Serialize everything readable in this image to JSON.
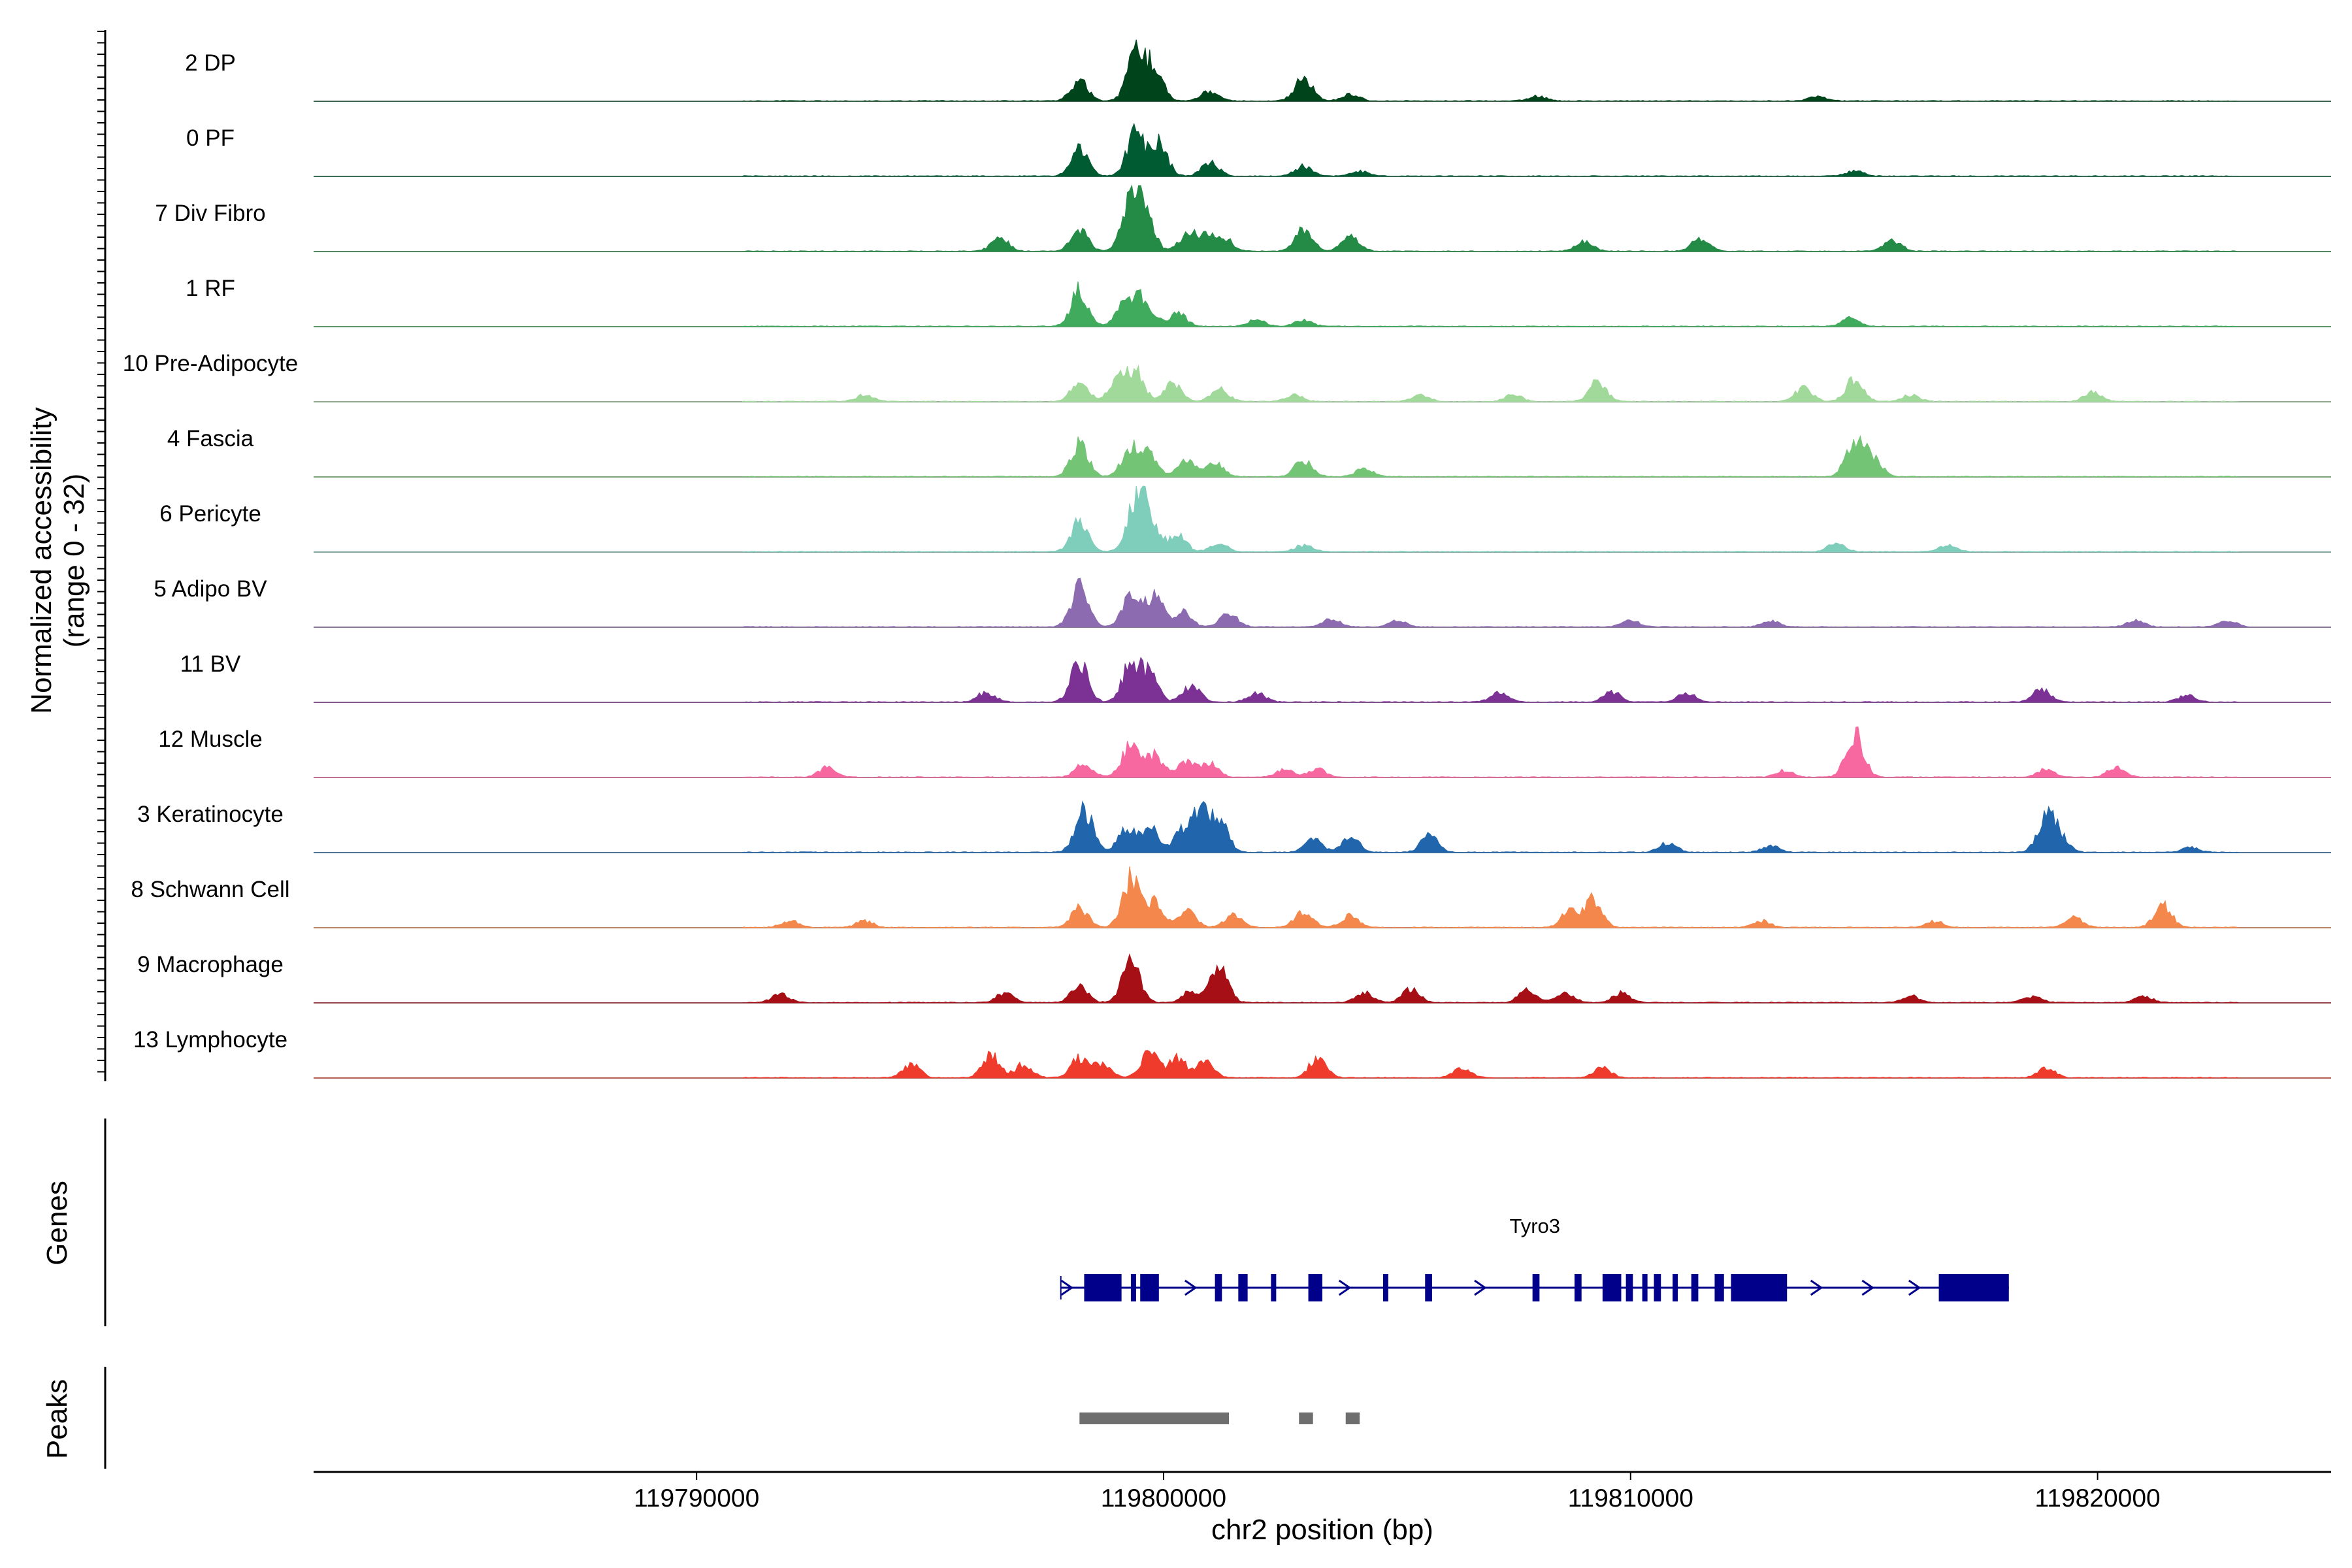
{
  "chart_data": {
    "type": "area",
    "region": {
      "chrom": "chr2",
      "start": 119781800,
      "end": 119825000
    },
    "y_axis_title": [
      "Normalized accessibility",
      "(range 0 - 32)"
    ],
    "ylim": [
      0,
      32
    ],
    "xlabel": "chr2 position (bp)",
    "x_ticks": [
      {
        "value": 119790000,
        "label": "119790000"
      },
      {
        "value": 119800000,
        "label": "119800000"
      },
      {
        "value": 119810000,
        "label": "119810000"
      },
      {
        "value": 119820000,
        "label": "119820000"
      }
    ],
    "tracks": [
      {
        "name": "2 DP",
        "color": "#00441b",
        "peaks": [
          [
            119799400,
            28
          ],
          [
            119799800,
            22
          ],
          [
            119798200,
            12
          ],
          [
            119803000,
            14
          ],
          [
            119801000,
            6
          ],
          [
            119804000,
            4
          ],
          [
            119808000,
            3
          ],
          [
            119814000,
            3
          ]
        ]
      },
      {
        "name": "0 PF",
        "color": "#005a32",
        "peaks": [
          [
            119799400,
            26
          ],
          [
            119799900,
            20
          ],
          [
            119798200,
            16
          ],
          [
            119801000,
            8
          ],
          [
            119803000,
            6
          ],
          [
            119804200,
            3
          ],
          [
            119814800,
            3
          ]
        ]
      },
      {
        "name": "7 Div Fibro",
        "color": "#238b45",
        "peaks": [
          [
            119799300,
            32
          ],
          [
            119799600,
            24
          ],
          [
            119798200,
            14
          ],
          [
            119800500,
            10
          ],
          [
            119803000,
            14
          ],
          [
            119804000,
            10
          ],
          [
            119796500,
            8
          ],
          [
            119800900,
            9
          ],
          [
            119801300,
            8
          ],
          [
            119809000,
            6
          ],
          [
            119811500,
            8
          ],
          [
            119815600,
            7
          ]
        ]
      },
      {
        "name": "1 RF",
        "color": "#41ab5d",
        "peaks": [
          [
            119798200,
            22
          ],
          [
            119799200,
            18
          ],
          [
            119799600,
            16
          ],
          [
            119800300,
            8
          ],
          [
            119802000,
            4
          ],
          [
            119803000,
            4
          ],
          [
            119814700,
            5
          ]
        ]
      },
      {
        "name": "10 Pre-Adipocyte",
        "color": "#a1d99b",
        "peaks": [
          [
            119798200,
            12
          ],
          [
            119799000,
            14
          ],
          [
            119799400,
            18
          ],
          [
            119800200,
            12
          ],
          [
            119801200,
            8
          ],
          [
            119793600,
            4
          ],
          [
            119809300,
            12
          ],
          [
            119813700,
            8
          ],
          [
            119814800,
            14
          ],
          [
            119816000,
            4
          ],
          [
            119819900,
            6
          ],
          [
            119802800,
            4
          ],
          [
            119805500,
            4
          ],
          [
            119807500,
            4
          ]
        ]
      },
      {
        "name": "4 Fascia",
        "color": "#74c476",
        "peaks": [
          [
            119798200,
            20
          ],
          [
            119799300,
            18
          ],
          [
            119799700,
            14
          ],
          [
            119800500,
            10
          ],
          [
            119801100,
            8
          ],
          [
            119803000,
            10
          ],
          [
            119804300,
            5
          ],
          [
            119814800,
            24
          ],
          [
            119815200,
            10
          ]
        ]
      },
      {
        "name": "6 Pericyte",
        "color": "#7fcdbb",
        "peaks": [
          [
            119798200,
            18
          ],
          [
            119799400,
            30
          ],
          [
            119799700,
            22
          ],
          [
            119800300,
            10
          ],
          [
            119801200,
            5
          ],
          [
            119803000,
            4
          ],
          [
            119814400,
            5
          ],
          [
            119816800,
            4
          ]
        ]
      },
      {
        "name": "5 Adipo BV",
        "color": "#8c6bb1",
        "peaks": [
          [
            119798200,
            24
          ],
          [
            119799300,
            20
          ],
          [
            119799800,
            18
          ],
          [
            119800400,
            10
          ],
          [
            119801400,
            8
          ],
          [
            119803600,
            5
          ],
          [
            119805000,
            4
          ],
          [
            119810000,
            4
          ],
          [
            119813000,
            4
          ],
          [
            119820800,
            4
          ],
          [
            119822800,
            4
          ]
        ]
      },
      {
        "name": "11 BV",
        "color": "#7b3294",
        "peaks": [
          [
            119798200,
            24
          ],
          [
            119799300,
            24
          ],
          [
            119799700,
            16
          ],
          [
            119800600,
            10
          ],
          [
            119796200,
            6
          ],
          [
            119802000,
            6
          ],
          [
            119807200,
            6
          ],
          [
            119809600,
            6
          ],
          [
            119811200,
            6
          ],
          [
            119818800,
            8
          ],
          [
            119821900,
            4
          ]
        ]
      },
      {
        "name": "12 Muscle",
        "color": "#f768a1",
        "peaks": [
          [
            119792800,
            6
          ],
          [
            119798300,
            8
          ],
          [
            119799300,
            20
          ],
          [
            119799800,
            14
          ],
          [
            119800500,
            10
          ],
          [
            119801000,
            8
          ],
          [
            119802600,
            5
          ],
          [
            119803300,
            5
          ],
          [
            119813300,
            4
          ],
          [
            119814800,
            28
          ],
          [
            119818900,
            5
          ],
          [
            119820400,
            6
          ]
        ]
      },
      {
        "name": "3 Keratinocyte",
        "color": "#2166ac",
        "peaks": [
          [
            119798300,
            26
          ],
          [
            119799200,
            14
          ],
          [
            119799700,
            16
          ],
          [
            119800400,
            12
          ],
          [
            119800800,
            26
          ],
          [
            119801200,
            18
          ],
          [
            119803200,
            8
          ],
          [
            119804000,
            10
          ],
          [
            119805700,
            10
          ],
          [
            119810800,
            6
          ],
          [
            119818900,
            22
          ],
          [
            119819200,
            8
          ],
          [
            119813000,
            4
          ],
          [
            119822000,
            3
          ]
        ]
      },
      {
        "name": "8 Schwann Cell",
        "color": "#f4874b",
        "peaks": [
          [
            119798200,
            12
          ],
          [
            119799300,
            30
          ],
          [
            119799800,
            16
          ],
          [
            119800500,
            10
          ],
          [
            119801500,
            8
          ],
          [
            119803000,
            10
          ],
          [
            119804000,
            7
          ],
          [
            119808700,
            10
          ],
          [
            119809200,
            18
          ],
          [
            119792000,
            4
          ],
          [
            119793600,
            4
          ],
          [
            119812800,
            4
          ],
          [
            119816500,
            4
          ],
          [
            119819500,
            6
          ],
          [
            119821400,
            14
          ]
        ]
      },
      {
        "name": "9 Macrophage",
        "color": "#a50f15",
        "peaks": [
          [
            119799300,
            26
          ],
          [
            119798200,
            10
          ],
          [
            119801200,
            24
          ],
          [
            119800600,
            8
          ],
          [
            119796600,
            6
          ],
          [
            119791800,
            5
          ],
          [
            119804300,
            6
          ],
          [
            119805300,
            8
          ],
          [
            119807800,
            8
          ],
          [
            119808600,
            6
          ],
          [
            119809800,
            6
          ],
          [
            119816000,
            4
          ],
          [
            119818600,
            4
          ],
          [
            119821000,
            4
          ]
        ]
      },
      {
        "name": "13 Lymphocyte",
        "color": "#ef3b2c",
        "peaks": [
          [
            119794600,
            8
          ],
          [
            119796300,
            14
          ],
          [
            119797000,
            8
          ],
          [
            119798200,
            12
          ],
          [
            119798700,
            8
          ],
          [
            119799700,
            16
          ],
          [
            119800300,
            12
          ],
          [
            119800900,
            10
          ],
          [
            119803300,
            12
          ],
          [
            119806400,
            6
          ],
          [
            119809400,
            6
          ],
          [
            119818900,
            6
          ]
        ]
      }
    ],
    "genes_track": {
      "label": "Genes",
      "gene_name": "Tyro3",
      "start": 119797800,
      "end": 119818100,
      "color": "#00008b",
      "exons": [
        [
          119798300,
          119799100
        ],
        [
          119799300,
          119799400
        ],
        [
          119799500,
          119799900
        ],
        [
          119801100,
          119801250
        ],
        [
          119801600,
          119801800
        ],
        [
          119802300,
          119802400
        ],
        [
          119803100,
          119803400
        ],
        [
          119804700,
          119804800
        ],
        [
          119805600,
          119805750
        ],
        [
          119807900,
          119808050
        ],
        [
          119808800,
          119808950
        ],
        [
          119809400,
          119809800
        ],
        [
          119809900,
          119810050
        ],
        [
          119810250,
          119810350
        ],
        [
          119810500,
          119810650
        ],
        [
          119810900,
          119811000
        ],
        [
          119811300,
          119811450
        ],
        [
          119811800,
          119812000
        ],
        [
          119812150,
          119813350
        ],
        [
          119816600,
          119818100
        ]
      ],
      "arrows": [
        119797950,
        119800600,
        119803900,
        119806800,
        119809700,
        119814000,
        119815100,
        119816100
      ]
    },
    "peaks_track": {
      "label": "Peaks",
      "color": "#6e6e6e",
      "intervals": [
        [
          119798200,
          119801400
        ],
        [
          119802900,
          119803200
        ],
        [
          119803900,
          119804200
        ]
      ]
    }
  }
}
